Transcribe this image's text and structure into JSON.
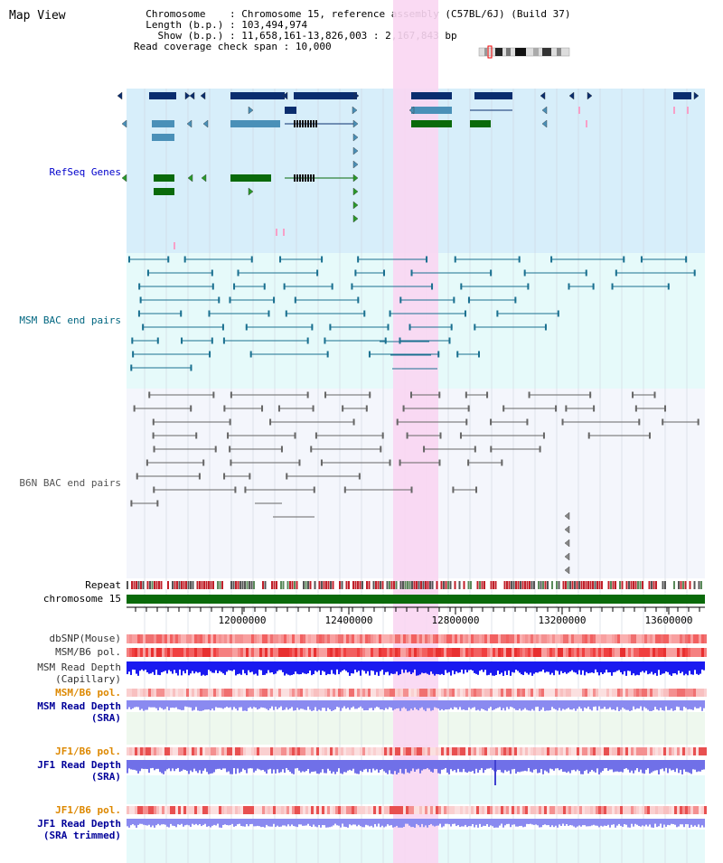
{
  "page": {
    "title": "Map View"
  },
  "info": {
    "chromosome_label": "Chromosome",
    "chromosome_value": "Chromosome 15, reference assembly (C57BL/6J) (Build 37)",
    "length_label": "Length (b.p.)",
    "length_value": "103,494,974",
    "show_label": "Show (b.p.)",
    "show_value": "11,658,161-13,826,003 : 2,167,843 bp",
    "coverage_label": "Read coverage check span",
    "coverage_value": "10,000"
  },
  "tracks": {
    "refseq": {
      "label": "RefSeq Genes",
      "color": "#0000cc"
    },
    "msm_bac": {
      "label": "MSM BAC end pairs",
      "color": "#006680"
    },
    "b6n_bac": {
      "label": "B6N BAC end pairs",
      "color": "#555555"
    },
    "repeat": {
      "label": "Repeat"
    },
    "chromosome": {
      "label": "chromosome 15",
      "color": "#006600"
    },
    "dbsnp": {
      "label": "dbSNP(Mouse)"
    },
    "msm_b6_pol": {
      "label": "MSM/B6 pol."
    },
    "msm_depth_cap": {
      "label": "MSM Read Depth",
      "sub": "(Capillary)"
    },
    "msm_b6_pol2": {
      "label": "MSM/B6 pol.",
      "color": "#dd8800"
    },
    "msm_depth_sra": {
      "label": "MSM Read Depth",
      "sub": "(SRA)",
      "color": "#000099"
    },
    "jf1_b6_pol": {
      "label": "JF1/B6 pol.",
      "color": "#dd8800"
    },
    "jf1_depth_sra": {
      "label": "JF1 Read Depth",
      "sub": "(SRA)",
      "color": "#000099"
    },
    "jf1_b6_pol2": {
      "label": "JF1/B6 pol.",
      "color": "#dd8800"
    },
    "jf1_depth_trim": {
      "label": "JF1 Read Depth",
      "sub": "(SRA trimmed)",
      "color": "#000099"
    }
  },
  "axis": {
    "ticks": [
      "12000000",
      "12400000",
      "12800000",
      "13200000",
      "13600000"
    ]
  },
  "colors": {
    "highlight": "#f9d6f2",
    "refseq_bg": "#d7eefa",
    "msm_bg": "#e6fafa",
    "b6n_bg": "#f4f6fc",
    "gene_dark": "#0a2d6e",
    "gene_mid": "#4a90b8",
    "gene_green": "#0a6a0a",
    "bac_msm": "#1a7090",
    "bac_b6n": "#666666"
  }
}
